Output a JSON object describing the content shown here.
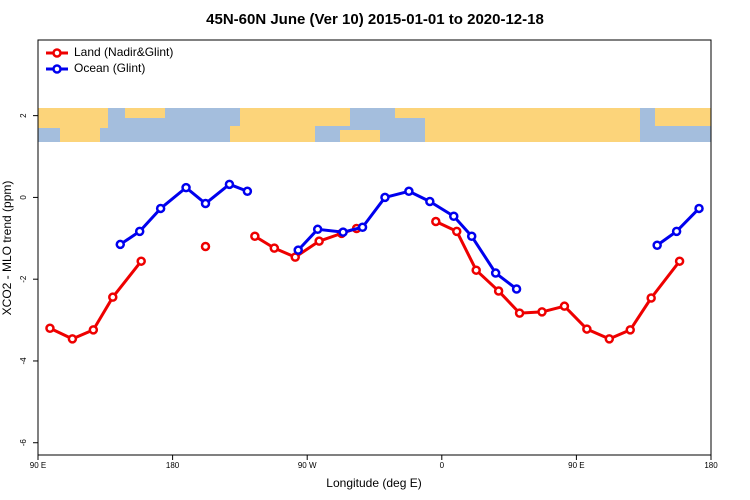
{
  "chart_data": {
    "type": "line",
    "title": "45N-60N June (Ver 10)   2015-01-01 to 2020-12-18",
    "x_label": "Longitude (deg E)",
    "y_label": "XCO2 - MLO trend (ppm)",
    "xlim": [
      90,
      540
    ],
    "ylim": [
      -6.3,
      3.85
    ],
    "xticks": [
      {
        "value": 90,
        "label": "90 E"
      },
      180,
      {
        "value": 270,
        "label": "90 W"
      },
      {
        "value": 360,
        "label": "0"
      },
      {
        "value": 450,
        "label": "90 E"
      },
      {
        "value": 540,
        "label": "180"
      }
    ],
    "yticks": [
      -6,
      -4,
      -2,
      0,
      2
    ],
    "legend": "top-left",
    "series": [
      {
        "name": "Land (Nadir&Glint)",
        "color": "#ee0000",
        "x": [
          98,
          113,
          127,
          140,
          159,
          null,
          202,
          null,
          235,
          248,
          262,
          278,
          293,
          303,
          null,
          356,
          370,
          383,
          398,
          412,
          427,
          442,
          457,
          472,
          486,
          500,
          519
        ],
        "values": [
          -3.2,
          -3.46,
          -3.24,
          -2.44,
          -1.56,
          null,
          -1.2,
          null,
          -0.95,
          -1.24,
          -1.46,
          -1.07,
          -0.88,
          -0.76,
          null,
          -0.59,
          -0.83,
          -1.78,
          -2.29,
          -2.83,
          -2.8,
          -2.66,
          -3.22,
          -3.46,
          -3.24,
          -2.46,
          -1.56
        ]
      },
      {
        "name": "Ocean (Glint)",
        "color": "#0000ee",
        "x": [
          145,
          158,
          172,
          189,
          202,
          218,
          230,
          null,
          264,
          277,
          294,
          307,
          322,
          338,
          352,
          368,
          380,
          396,
          410,
          null,
          504,
          517,
          532
        ],
        "values": [
          -1.15,
          -0.83,
          -0.27,
          0.24,
          -0.15,
          0.32,
          0.15,
          null,
          -1.29,
          -0.78,
          -0.85,
          -0.73,
          0.0,
          0.15,
          -0.1,
          -0.46,
          -0.95,
          -1.85,
          -2.24,
          null,
          -1.17,
          -0.83,
          -0.27
        ]
      }
    ]
  }
}
